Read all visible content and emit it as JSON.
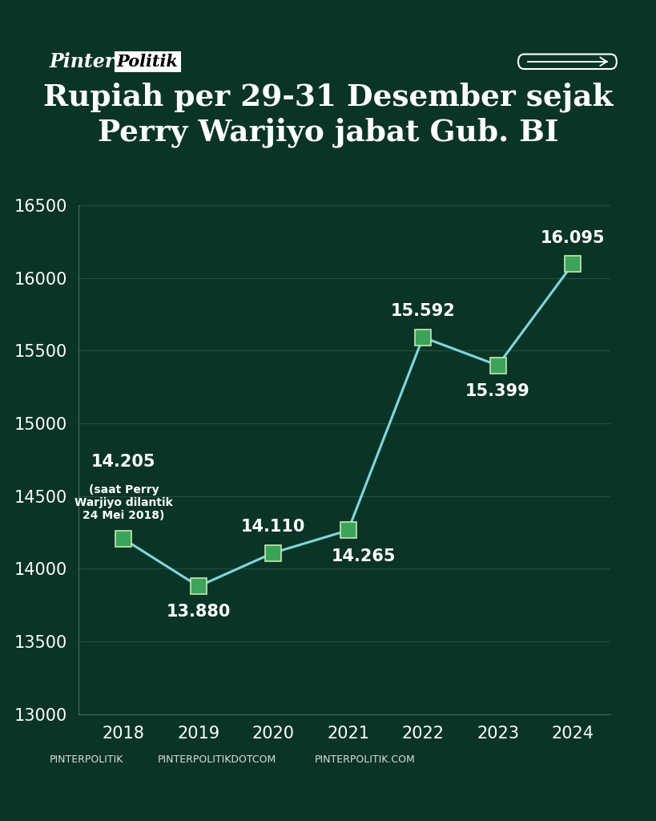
{
  "brand": [
    "Pinter",
    "Politik"
  ],
  "footer": [
    "PINTERPOLITIK",
    "PINTERPOLITIKDOTCOM",
    "PINTERPOLITIK.COM"
  ],
  "chart_data": {
    "type": "line",
    "title": "Rupiah per 29-31 Desember sejak Perry Warjiyo jabat Gub. BI",
    "categories": [
      "2018",
      "2019",
      "2020",
      "2021",
      "2022",
      "2023",
      "2024"
    ],
    "values": [
      14205,
      13880,
      14110,
      14265,
      15592,
      15399,
      16095
    ],
    "value_labels": [
      "14.205",
      "13.880",
      "14.110",
      "14.265",
      "15.592",
      "15.399",
      "16.095"
    ],
    "annotation": "(saat Perry\nWarjiyo dilantik\n24 Mei 2018)",
    "color": "#7fd8e0",
    "marker": "s",
    "line_style": "solid",
    "data_labels": true,
    "ylim": [
      13000,
      16500
    ],
    "yticks": [
      13000,
      13500,
      14000,
      14500,
      15000,
      15500,
      16000,
      16500
    ],
    "grid": true
  }
}
